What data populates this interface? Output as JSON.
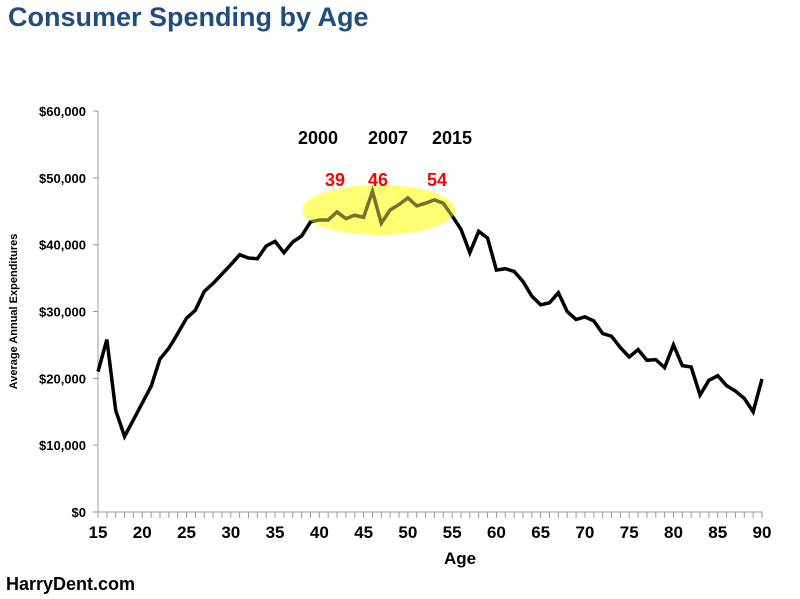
{
  "title": "Consumer Spending by Age",
  "footer": "HarryDent.com",
  "chart_data": {
    "type": "line",
    "title": "Consumer Spending by Age",
    "xlabel": "Age",
    "ylabel": "Average Annual Expenditures",
    "xlim": [
      15,
      90
    ],
    "ylim": [
      0,
      60000
    ],
    "xticks": [
      "15",
      "20",
      "25",
      "30",
      "35",
      "40",
      "45",
      "50",
      "55",
      "60",
      "65",
      "70",
      "75",
      "80",
      "85",
      "90"
    ],
    "yticks": [
      "$0",
      "$10,000",
      "$20,000",
      "$30,000",
      "$40,000",
      "$50,000",
      "$60,000"
    ],
    "grid": false,
    "line_color": "#000000",
    "x": [
      15,
      16,
      17,
      18,
      19,
      20,
      21,
      22,
      23,
      24,
      25,
      26,
      27,
      28,
      29,
      30,
      31,
      32,
      33,
      34,
      35,
      36,
      37,
      38,
      39,
      40,
      41,
      42,
      43,
      44,
      45,
      46,
      47,
      48,
      49,
      50,
      51,
      52,
      53,
      54,
      55,
      56,
      57,
      58,
      59,
      60,
      61,
      62,
      63,
      64,
      65,
      66,
      67,
      68,
      69,
      70,
      71,
      72,
      73,
      74,
      75,
      76,
      77,
      78,
      79,
      80,
      81,
      82,
      83,
      84,
      85,
      86,
      87,
      88,
      89,
      90
    ],
    "values": [
      21000,
      25800,
      15200,
      11300,
      13800,
      16300,
      18800,
      22900,
      24500,
      26700,
      29000,
      30200,
      33000,
      34200,
      35600,
      37000,
      38500,
      38000,
      37900,
      39800,
      40500,
      38800,
      40400,
      41300,
      43400,
      43700,
      43700,
      44900,
      43900,
      44400,
      44100,
      48000,
      43200,
      45200,
      46000,
      47000,
      45800,
      46200,
      46700,
      46200,
      44300,
      42300,
      38800,
      42000,
      41000,
      36200,
      36400,
      36000,
      34500,
      32300,
      31000,
      31300,
      32800,
      30000,
      28800,
      29200,
      28600,
      26700,
      26300,
      24600,
      23200,
      24300,
      22700,
      22800,
      21600,
      25000,
      21900,
      21700,
      17500,
      19700,
      20400,
      18900,
      18100,
      17000,
      15000,
      19900
    ],
    "highlight": {
      "x_range": [
        39,
        54
      ],
      "color": "#ffff66"
    },
    "annotations": [
      {
        "year": "2000",
        "age": "39"
      },
      {
        "year": "2007",
        "age": "46"
      },
      {
        "year": "2015",
        "age": "54"
      }
    ],
    "annotation_year_color": "#000000",
    "annotation_age_color": "#ff0000"
  }
}
